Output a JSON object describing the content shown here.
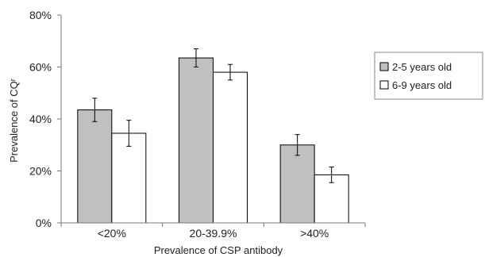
{
  "chart_data": {
    "type": "bar",
    "categories": [
      "<20%",
      "20-39.9%",
      ">40%"
    ],
    "series": [
      {
        "name": "2-5 years old",
        "values": [
          43.5,
          63.5,
          30.0
        ],
        "error": [
          4.5,
          3.5,
          4.0
        ],
        "color": "#c0c0c0"
      },
      {
        "name": "6-9 years old",
        "values": [
          34.5,
          58.0,
          18.5
        ],
        "error": [
          5.0,
          3.0,
          3.0
        ],
        "color": "#ffffff"
      }
    ],
    "xlabel": "Prevalence of CSP antibody",
    "ylabel": "Prevalence of CQʳ",
    "ylim": [
      0,
      80
    ],
    "yticks": [
      "0%",
      "20%",
      "40%",
      "60%",
      "80%"
    ],
    "ytick_values": [
      0,
      20,
      40,
      60,
      80
    ],
    "grid": false,
    "legend_position": "right"
  }
}
